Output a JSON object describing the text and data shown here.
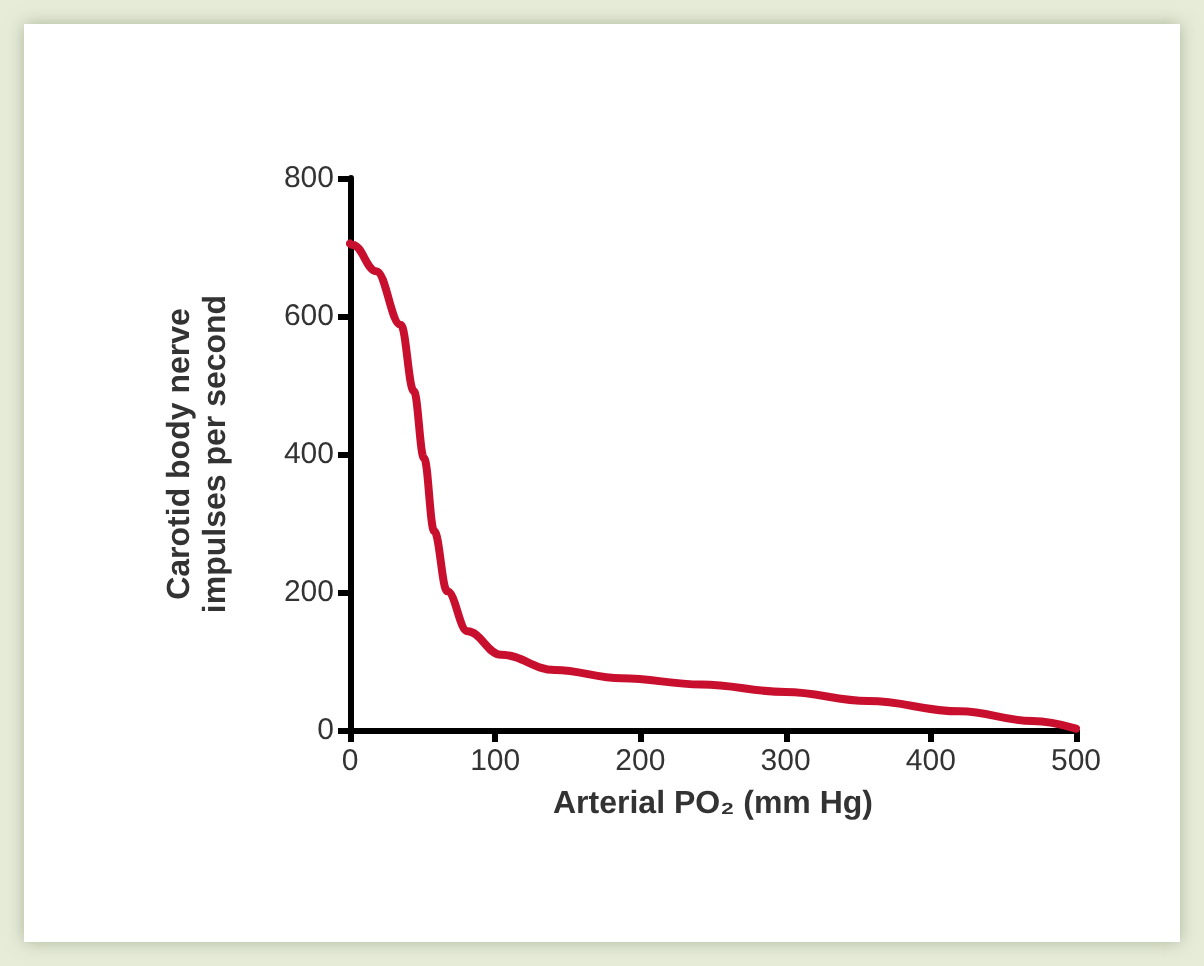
{
  "chart_data": {
    "type": "line",
    "xlabel": "Arterial PO₂ (mm Hg)",
    "ylabel": "Carotid body nerve\nimpulses per second",
    "x": [
      0,
      2,
      18,
      35,
      44,
      51,
      58,
      67,
      81,
      104,
      141,
      187,
      242,
      300,
      357,
      420,
      470,
      500
    ],
    "series": [
      {
        "color": "#c8102e",
        "values": [
          705,
          703,
          665,
          587,
          491,
          394,
          288,
          201,
          143,
          109,
          87,
          75,
          66,
          55,
          42,
          27,
          13,
          2
        ]
      }
    ],
    "xlim": [
      0,
      500
    ],
    "xticks": [
      0,
      100,
      200,
      300,
      400,
      500
    ],
    "ylim": [
      0,
      800
    ],
    "yticks": [
      0,
      200,
      400,
      600,
      800
    ],
    "grid": false,
    "marker": "none",
    "line_style": "solid"
  }
}
